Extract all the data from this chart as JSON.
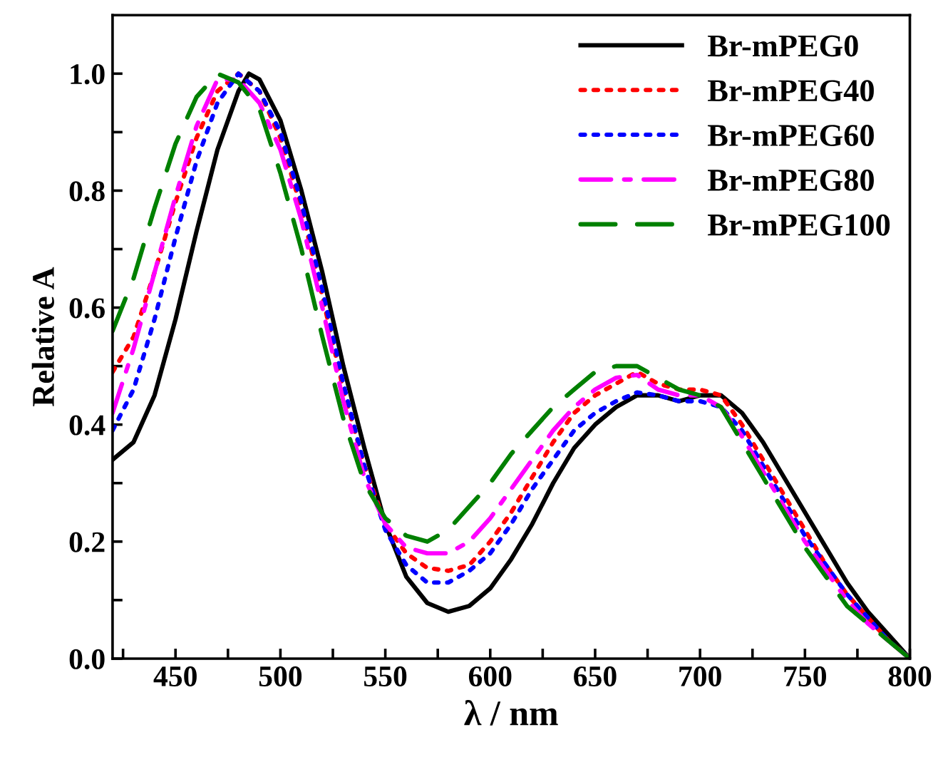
{
  "chart_data": {
    "type": "line",
    "xlabel": "λ / nm",
    "ylabel": "Relative A",
    "xlim": [
      420,
      800
    ],
    "ylim": [
      0,
      1.1
    ],
    "xticks": [
      {
        "value": 425,
        "label": null
      },
      450,
      {
        "value": 475,
        "label": null
      },
      500,
      {
        "value": 525,
        "label": null
      },
      550,
      {
        "value": 575,
        "label": null
      },
      600,
      {
        "value": 625,
        "label": null
      },
      650,
      {
        "value": 675,
        "label": null
      },
      700,
      {
        "value": 725,
        "label": null
      },
      750,
      {
        "value": 775,
        "label": null
      },
      800
    ],
    "yticks": [
      {
        "value": 0,
        "label": "0.0"
      },
      {
        "value": 0.1,
        "label": null
      },
      0.2,
      {
        "value": 0.3,
        "label": null
      },
      0.4,
      {
        "value": 0.5,
        "label": null
      },
      0.6,
      {
        "value": 0.7,
        "label": null
      },
      0.8,
      {
        "value": 0.9,
        "label": null
      },
      {
        "value": 1.0,
        "label": "1.0"
      }
    ],
    "grid": false,
    "legend": "top right",
    "marker": "none",
    "x": [
      420,
      430,
      440,
      450,
      460,
      470,
      480,
      490,
      500,
      510,
      520,
      530,
      540,
      550,
      560,
      570,
      580,
      590,
      600,
      610,
      620,
      630,
      640,
      650,
      660,
      670,
      680,
      690,
      700,
      710,
      720,
      730,
      740,
      750,
      760,
      770,
      780,
      790,
      800
    ],
    "series": [
      {
        "name": "Br-mPEG0",
        "color": "#000000",
        "line_style": "solid",
        "x": [
          420,
          430,
          440,
          450,
          460,
          470,
          480,
          485,
          490,
          500,
          510,
          520,
          530,
          540,
          550,
          560,
          570,
          580,
          590,
          600,
          610,
          620,
          630,
          640,
          650,
          660,
          670,
          680,
          690,
          700,
          710,
          720,
          730,
          740,
          750,
          760,
          770,
          780,
          790,
          800
        ],
        "values": [
          0.34,
          0.37,
          0.45,
          0.58,
          0.73,
          0.87,
          0.97,
          1.0,
          0.99,
          0.92,
          0.8,
          0.66,
          0.5,
          0.36,
          0.23,
          0.14,
          0.095,
          0.08,
          0.09,
          0.12,
          0.17,
          0.23,
          0.3,
          0.36,
          0.4,
          0.43,
          0.45,
          0.45,
          0.44,
          0.45,
          0.45,
          0.42,
          0.37,
          0.31,
          0.25,
          0.19,
          0.13,
          0.08,
          0.04,
          0.0
        ]
      },
      {
        "name": "Br-mPEG40",
        "color": "#ff0000",
        "line_style": "dotted",
        "values": [
          0.49,
          0.55,
          0.66,
          0.78,
          0.89,
          0.97,
          1.0,
          0.97,
          0.89,
          0.77,
          0.62,
          0.46,
          0.33,
          0.23,
          0.18,
          0.155,
          0.15,
          0.16,
          0.2,
          0.25,
          0.31,
          0.37,
          0.42,
          0.45,
          0.47,
          0.49,
          0.47,
          0.46,
          0.46,
          0.45,
          0.4,
          0.34,
          0.28,
          0.22,
          0.16,
          0.11,
          0.07,
          0.03,
          0.0
        ]
      },
      {
        "name": "Br-mPEG60",
        "color": "#0000ff",
        "line_style": "dotted",
        "values": [
          0.39,
          0.46,
          0.58,
          0.72,
          0.85,
          0.95,
          1.0,
          0.97,
          0.9,
          0.78,
          0.63,
          0.47,
          0.33,
          0.22,
          0.16,
          0.13,
          0.13,
          0.15,
          0.18,
          0.23,
          0.29,
          0.34,
          0.39,
          0.42,
          0.44,
          0.455,
          0.45,
          0.44,
          0.44,
          0.43,
          0.39,
          0.33,
          0.27,
          0.21,
          0.16,
          0.11,
          0.07,
          0.03,
          0.0
        ]
      },
      {
        "name": "Br-mPEG80",
        "color": "#ff00ff",
        "line_style": "dashdot",
        "values": [
          0.42,
          0.53,
          0.66,
          0.79,
          0.91,
          0.99,
          0.99,
          0.95,
          0.87,
          0.75,
          0.6,
          0.44,
          0.31,
          0.23,
          0.19,
          0.18,
          0.18,
          0.2,
          0.24,
          0.29,
          0.34,
          0.39,
          0.43,
          0.46,
          0.48,
          0.485,
          0.46,
          0.45,
          0.45,
          0.43,
          0.38,
          0.32,
          0.26,
          0.2,
          0.15,
          0.1,
          0.06,
          0.03,
          0.0
        ]
      },
      {
        "name": "Br-mPEG100",
        "color": "#008000",
        "line_style": "dashed",
        "values": [
          0.56,
          0.65,
          0.77,
          0.88,
          0.96,
          1.0,
          0.985,
          0.94,
          0.83,
          0.7,
          0.55,
          0.41,
          0.3,
          0.24,
          0.21,
          0.2,
          0.22,
          0.26,
          0.3,
          0.35,
          0.39,
          0.43,
          0.46,
          0.49,
          0.5,
          0.5,
          0.48,
          0.46,
          0.45,
          0.43,
          0.37,
          0.31,
          0.25,
          0.19,
          0.14,
          0.09,
          0.06,
          0.03,
          0.0
        ]
      }
    ]
  }
}
